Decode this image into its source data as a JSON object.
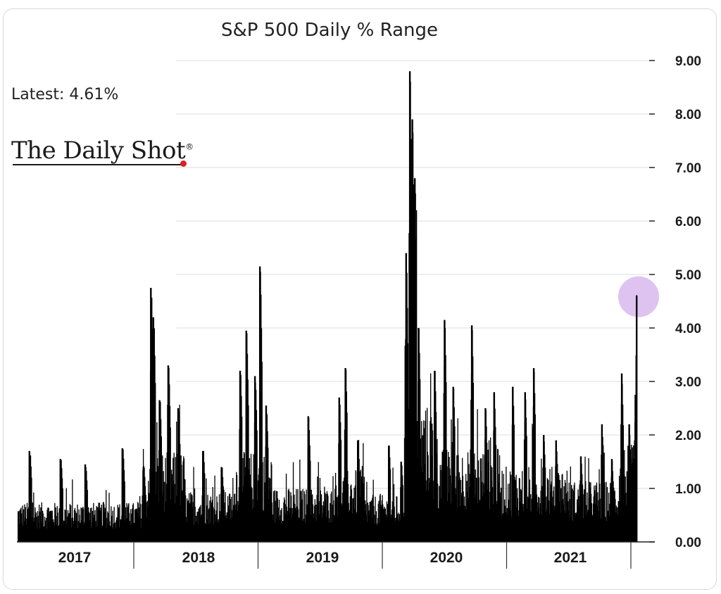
{
  "chart_data": {
    "type": "bar",
    "title": "S&P 500 Daily % Range",
    "annotation": "Latest:  4.61%",
    "source_logo": "The Daily Shot",
    "logo_mark": "®",
    "y_ticks": [
      "0.00",
      "1.00",
      "2.00",
      "3.00",
      "4.00",
      "5.00",
      "6.00",
      "7.00",
      "8.00",
      "9.00"
    ],
    "ylim": [
      0,
      9
    ],
    "grid": true,
    "yaxis_side": "right",
    "x_categories": [
      "2017",
      "2018",
      "2019",
      "2020",
      "2021"
    ],
    "latest_value": 4.61,
    "highlight_color": "#d8b8ee",
    "bar_color": "#000000",
    "peaks": [
      {
        "x": 0.1,
        "y": 1.7
      },
      {
        "x": 0.35,
        "y": 1.55
      },
      {
        "x": 0.55,
        "y": 1.45
      },
      {
        "x": 0.85,
        "y": 1.75
      },
      {
        "x": 1.02,
        "y": 1.4
      },
      {
        "x": 1.08,
        "y": 4.75
      },
      {
        "x": 1.1,
        "y": 4.2
      },
      {
        "x": 1.15,
        "y": 2.65
      },
      {
        "x": 1.22,
        "y": 3.3
      },
      {
        "x": 1.3,
        "y": 2.5
      },
      {
        "x": 1.5,
        "y": 1.7
      },
      {
        "x": 1.65,
        "y": 1.4
      },
      {
        "x": 1.8,
        "y": 3.2
      },
      {
        "x": 1.85,
        "y": 3.95
      },
      {
        "x": 1.92,
        "y": 3.1
      },
      {
        "x": 1.96,
        "y": 5.15
      },
      {
        "x": 2.01,
        "y": 2.55
      },
      {
        "x": 2.35,
        "y": 2.35
      },
      {
        "x": 2.6,
        "y": 2.7
      },
      {
        "x": 2.65,
        "y": 3.25
      },
      {
        "x": 2.75,
        "y": 1.9
      },
      {
        "x": 3.0,
        "y": 1.8
      },
      {
        "x": 3.1,
        "y": 1.5
      },
      {
        "x": 3.14,
        "y": 5.4
      },
      {
        "x": 3.17,
        "y": 8.8
      },
      {
        "x": 3.19,
        "y": 7.9
      },
      {
        "x": 3.21,
        "y": 6.8
      },
      {
        "x": 3.24,
        "y": 4.0
      },
      {
        "x": 3.37,
        "y": 3.2
      },
      {
        "x": 3.45,
        "y": 4.15
      },
      {
        "x": 3.52,
        "y": 2.9
      },
      {
        "x": 3.67,
        "y": 4.05
      },
      {
        "x": 3.78,
        "y": 2.5
      },
      {
        "x": 3.85,
        "y": 2.8
      },
      {
        "x": 4.0,
        "y": 2.9
      },
      {
        "x": 4.1,
        "y": 2.8
      },
      {
        "x": 4.17,
        "y": 3.25
      },
      {
        "x": 4.25,
        "y": 2.0
      },
      {
        "x": 4.35,
        "y": 1.9
      },
      {
        "x": 4.55,
        "y": 1.6
      },
      {
        "x": 4.72,
        "y": 2.2
      },
      {
        "x": 4.8,
        "y": 1.55
      },
      {
        "x": 4.88,
        "y": 3.15
      },
      {
        "x": 4.94,
        "y": 2.2
      },
      {
        "x": 4.99,
        "y": 2.75
      },
      {
        "x": 5.0,
        "y": 4.61
      }
    ]
  }
}
